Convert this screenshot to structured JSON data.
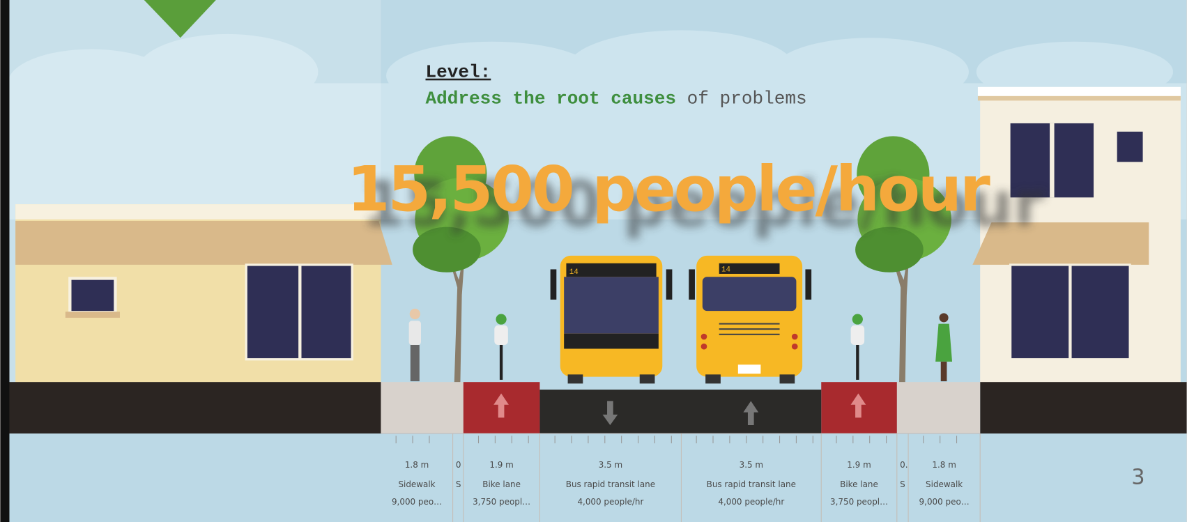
{
  "level_label": "Level:",
  "heading": {
    "emphasis": "Address the root causes",
    "rest": "of problems"
  },
  "overlay_text": "15,500 people/hour",
  "bus_signs": [
    "14",
    "14"
  ],
  "segments": [
    {
      "width": "1.8 m",
      "name": "Sidewalk",
      "capacity": "9,000 peo…"
    },
    {
      "width": "0",
      "name": "S"
    },
    {
      "width": "1.9 m",
      "name": "Bike lane",
      "capacity": "3,750 peopl…"
    },
    {
      "width": "3.5 m",
      "name": "Bus rapid transit lane",
      "capacity": "4,000 people/hr"
    },
    {
      "width": "3.5 m",
      "name": "Bus rapid transit lane",
      "capacity": "4,000 people/hr"
    },
    {
      "width": "1.9 m",
      "name": "Bike lane",
      "capacity": "3,750 peopl…"
    },
    {
      "width": "0.",
      "name": "S"
    },
    {
      "width": "1.8 m",
      "name": "Sidewalk",
      "capacity": "9,000 peo…"
    }
  ],
  "page_number": "3"
}
